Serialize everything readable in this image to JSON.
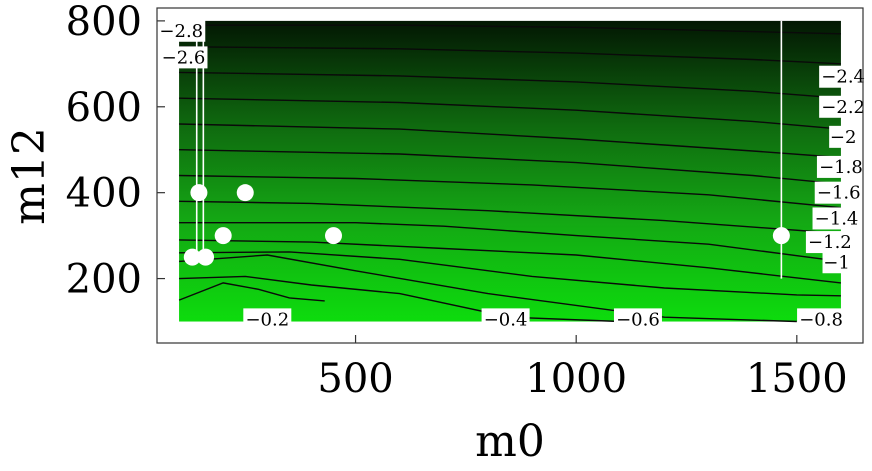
{
  "chart_data": {
    "type": "contour",
    "title": "",
    "xlabel": "m0",
    "ylabel": "m12",
    "xlim": [
      50,
      1650
    ],
    "ylim": [
      50,
      830
    ],
    "region": {
      "x": [
        100,
        1600
      ],
      "y": [
        100,
        800
      ]
    },
    "x_ticks": [
      500,
      1000,
      1500
    ],
    "y_ticks": [
      200,
      400,
      600,
      800
    ],
    "x_tick_labels": [
      "500",
      "1000",
      "1500"
    ],
    "y_tick_labels": [
      "200",
      "400",
      "600",
      "800"
    ],
    "grid": false,
    "colormap": {
      "low": "#0ddc0d",
      "high": "#031703"
    },
    "contours": [
      {
        "level": "-0.2",
        "label": "−0.2",
        "points": [
          [
            100,
            150
          ],
          [
            200,
            190
          ],
          [
            280,
            175
          ],
          [
            350,
            155
          ],
          [
            430,
            148
          ]
        ]
      },
      {
        "level": "-0.4",
        "label": "−0.4",
        "points": [
          [
            100,
            200
          ],
          [
            250,
            205
          ],
          [
            400,
            185
          ],
          [
            600,
            165
          ],
          [
            850,
            110
          ],
          [
            1100,
            100
          ]
        ]
      },
      {
        "level": "-0.6",
        "label": "−0.6",
        "points": [
          [
            100,
            240
          ],
          [
            300,
            255
          ],
          [
            500,
            218
          ],
          [
            800,
            165
          ],
          [
            1200,
            110
          ],
          [
            1500,
            100
          ]
        ]
      },
      {
        "level": "-0.8",
        "label": "−0.8",
        "points": [
          [
            100,
            260
          ],
          [
            350,
            262
          ],
          [
            600,
            245
          ],
          [
            900,
            205
          ],
          [
            1200,
            178
          ],
          [
            1500,
            162
          ],
          [
            1600,
            160
          ]
        ]
      },
      {
        "level": "-1",
        "label": "−1",
        "points": [
          [
            100,
            290
          ],
          [
            400,
            285
          ],
          [
            700,
            270
          ],
          [
            1000,
            255
          ],
          [
            1300,
            225
          ],
          [
            1600,
            190
          ]
        ]
      },
      {
        "level": "-1.2",
        "label": "−1.2",
        "points": [
          [
            100,
            330
          ],
          [
            500,
            330
          ],
          [
            700,
            322
          ],
          [
            1000,
            300
          ],
          [
            1300,
            280
          ],
          [
            1600,
            240
          ]
        ]
      },
      {
        "level": "-1.4",
        "label": "−1.4",
        "points": [
          [
            100,
            380
          ],
          [
            400,
            375
          ],
          [
            800,
            358
          ],
          [
            1200,
            335
          ],
          [
            1600,
            305
          ]
        ]
      },
      {
        "level": "-1.6",
        "label": "−1.6",
        "points": [
          [
            100,
            440
          ],
          [
            500,
            433
          ],
          [
            900,
            418
          ],
          [
            1300,
            395
          ],
          [
            1600,
            365
          ]
        ]
      },
      {
        "level": "-1.8",
        "label": "−1.8",
        "points": [
          [
            100,
            500
          ],
          [
            600,
            490
          ],
          [
            1000,
            470
          ],
          [
            1400,
            440
          ],
          [
            1600,
            420
          ]
        ]
      },
      {
        "level": "-2",
        "label": "−2",
        "points": [
          [
            100,
            560
          ],
          [
            600,
            548
          ],
          [
            1000,
            525
          ],
          [
            1400,
            497
          ],
          [
            1600,
            482
          ]
        ]
      },
      {
        "level": "-2.2",
        "label": "−2.2",
        "points": [
          [
            100,
            620
          ],
          [
            600,
            610
          ],
          [
            1000,
            592
          ],
          [
            1400,
            566
          ],
          [
            1600,
            548
          ]
        ]
      },
      {
        "level": "-2.4",
        "label": "−2.4",
        "points": [
          [
            100,
            680
          ],
          [
            600,
            672
          ],
          [
            1000,
            658
          ],
          [
            1400,
            636
          ],
          [
            1600,
            620
          ]
        ]
      },
      {
        "level": "-2.6",
        "label": "−2.6",
        "points": [
          [
            100,
            740
          ],
          [
            600,
            735
          ],
          [
            1000,
            725
          ],
          [
            1400,
            710
          ],
          [
            1600,
            700
          ]
        ]
      },
      {
        "level": "-2.8",
        "label": "−2.8",
        "points": [
          [
            100,
            790
          ],
          [
            600,
            790
          ],
          [
            1000,
            785
          ],
          [
            1400,
            775
          ],
          [
            1600,
            770
          ]
        ]
      }
    ],
    "vertical_lines": [
      {
        "x": 140,
        "y": [
          250,
          800
        ]
      },
      {
        "x": 155,
        "y": [
          250,
          800
        ]
      },
      {
        "x": 1465,
        "y": [
          200,
          800
        ]
      }
    ],
    "points": [
      {
        "x": 130,
        "y": 250
      },
      {
        "x": 160,
        "y": 250
      },
      {
        "x": 145,
        "y": 400
      },
      {
        "x": 250,
        "y": 400
      },
      {
        "x": 200,
        "y": 300
      },
      {
        "x": 450,
        "y": 300
      },
      {
        "x": 1465,
        "y": 300
      }
    ]
  }
}
